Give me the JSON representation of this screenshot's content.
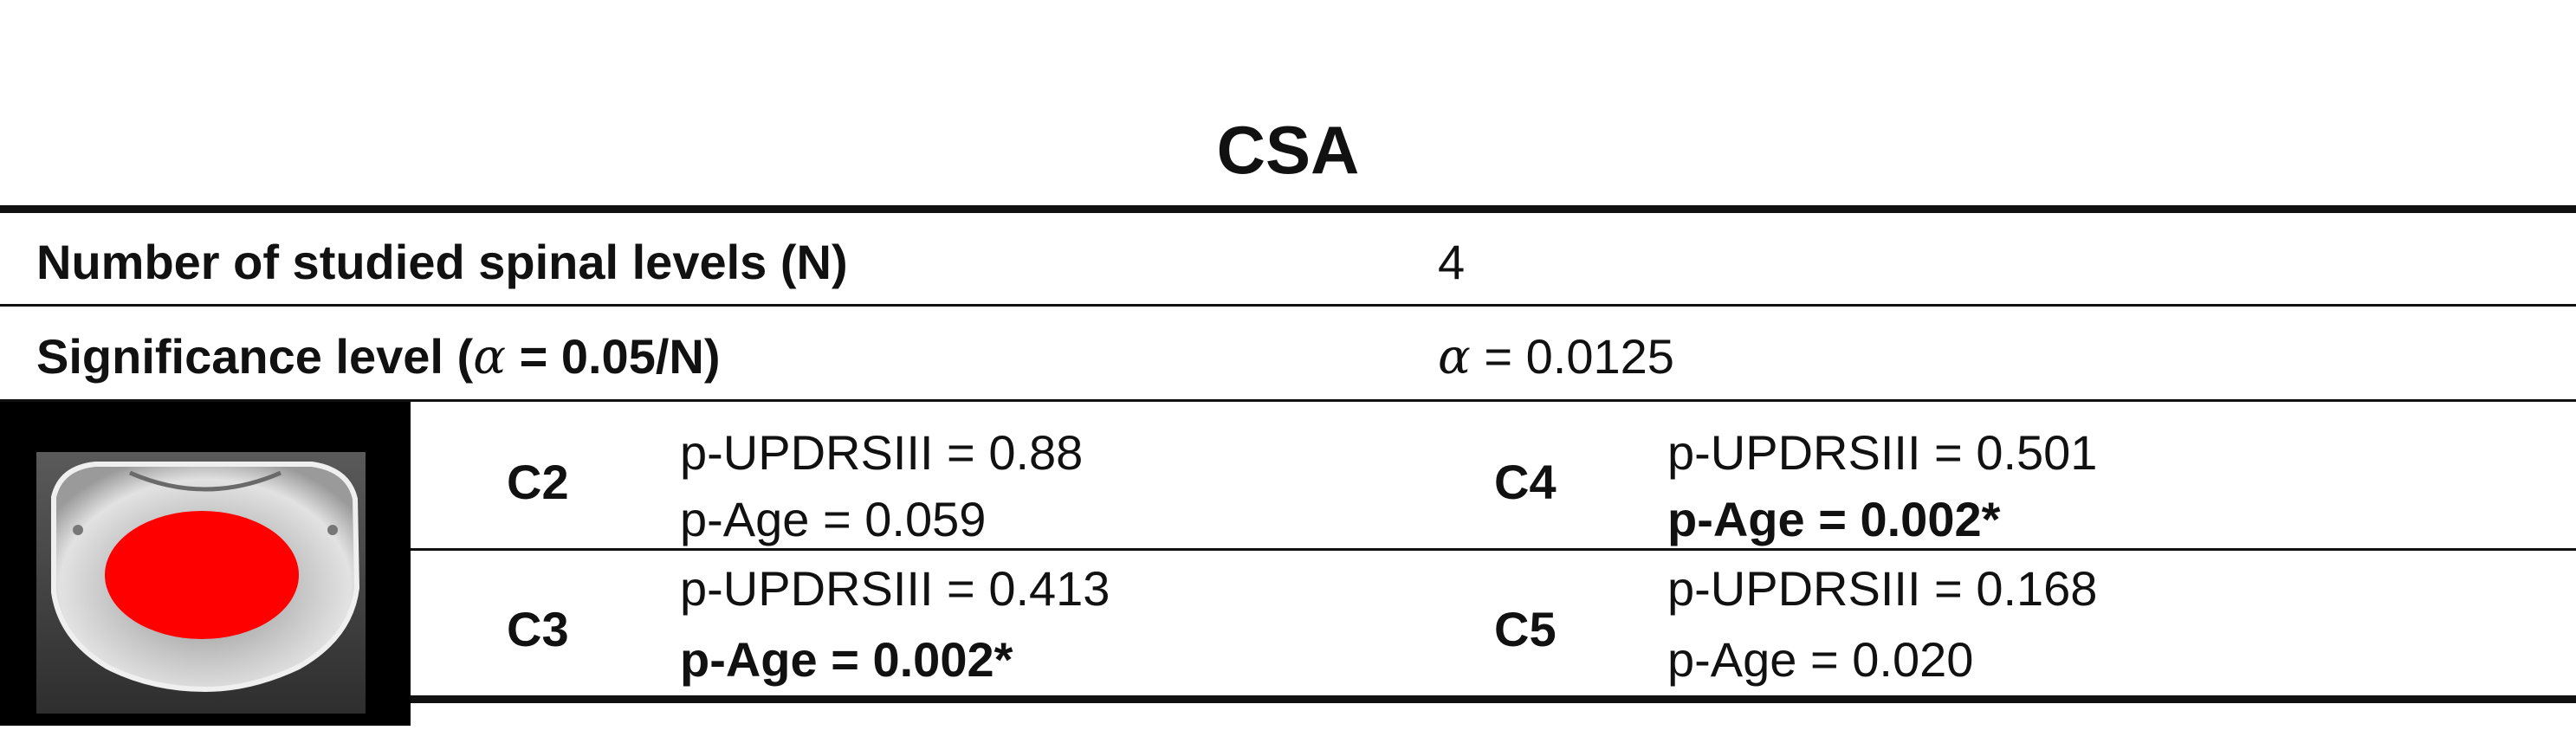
{
  "title": "CSA",
  "rows": {
    "n_levels": {
      "label": "Number of studied spinal levels (N)",
      "value": "4"
    },
    "significance": {
      "label_pre": "Significance level (",
      "label_alpha": "α",
      "label_post": " = 0.05/N)",
      "value_alpha": "α",
      "value_post": " = 0.0125"
    }
  },
  "levels": [
    {
      "name": "C2",
      "p_updrs": "p-UPDRSIII = 0.88",
      "p_age": "p-Age = 0.059",
      "age_significant": false
    },
    {
      "name": "C4",
      "p_updrs": "p-UPDRSIII = 0.501",
      "p_age": "p-Age = 0.002*",
      "age_significant": true
    },
    {
      "name": "C3",
      "p_updrs": "p-UPDRSIII = 0.413",
      "p_age": "p-Age = 0.002*",
      "age_significant": true
    },
    {
      "name": "C5",
      "p_updrs": "p-UPDRSIII = 0.168",
      "p_age": "p-Age = 0.020",
      "age_significant": false
    }
  ],
  "colors": {
    "segmentation": "#ff0000",
    "rule": "#111111"
  }
}
